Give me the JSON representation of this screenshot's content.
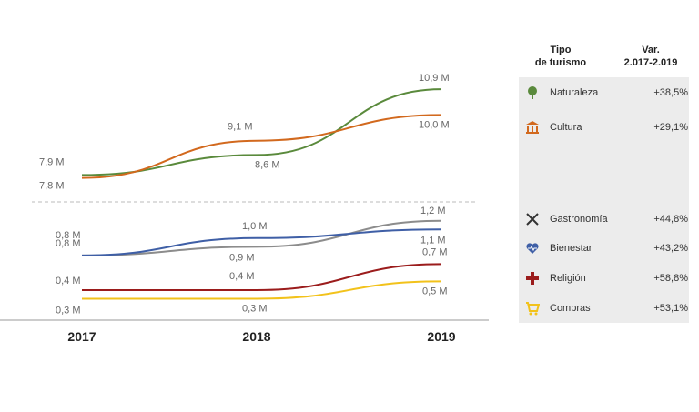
{
  "chart_data": {
    "type": "line",
    "x": [
      "2017",
      "2018",
      "2019"
    ],
    "upper_panel": [
      {
        "name": "Naturaleza",
        "color": "#5a8a3c",
        "values": [
          7.9,
          8.6,
          10.9
        ],
        "labels": [
          "7,9 M",
          "8,6 M",
          "10,9 M"
        ]
      },
      {
        "name": "Cultura",
        "color": "#d2691e",
        "values": [
          7.8,
          9.1,
          10.0
        ],
        "labels": [
          "7,8 M",
          "9,1 M",
          "10,0 M"
        ]
      }
    ],
    "lower_panel": [
      {
        "name": "Gastronomía",
        "color": "#8c8c8c",
        "values": [
          0.8,
          0.9,
          1.2
        ],
        "labels": [
          "0,8 M",
          "0,9 M",
          "1,2 M"
        ]
      },
      {
        "name": "Bienestar",
        "color": "#3f5fa6",
        "values": [
          0.8,
          1.0,
          1.1
        ],
        "labels": [
          "0,8 M",
          "1,0 M",
          "1,1 M"
        ]
      },
      {
        "name": "Religión",
        "color": "#9b1c1c",
        "values": [
          0.4,
          0.4,
          0.7
        ],
        "labels": [
          "0,4 M",
          "0,4 M",
          "0,7 M"
        ]
      },
      {
        "name": "Compras",
        "color": "#f2c21b",
        "values": [
          0.3,
          0.3,
          0.5
        ],
        "labels": [
          "0,3 M",
          "0,3 M",
          "0,5 M"
        ]
      }
    ]
  },
  "legend": {
    "header_type": [
      "Tipo",
      "de turismo"
    ],
    "header_var": [
      "Var.",
      "2.017-2.019"
    ],
    "rows": [
      {
        "icon": "tree-icon",
        "name": "Naturaleza",
        "var": "+38,5%",
        "color": "#5a8a3c"
      },
      {
        "icon": "monument-icon",
        "name": "Cultura",
        "var": "+29,1%",
        "color": "#d2691e"
      },
      {
        "icon": "cutlery-icon",
        "name": "Gastronomía",
        "var": "+44,8%",
        "color": "#333333"
      },
      {
        "icon": "heart-pulse-icon",
        "name": "Bienestar",
        "var": "+43,2%",
        "color": "#3f5fa6"
      },
      {
        "icon": "cross-icon",
        "name": "Religión",
        "var": "+58,8%",
        "color": "#9b1c1c"
      },
      {
        "icon": "cart-icon",
        "name": "Compras",
        "var": "+53,1%",
        "color": "#f2c21b"
      }
    ]
  }
}
